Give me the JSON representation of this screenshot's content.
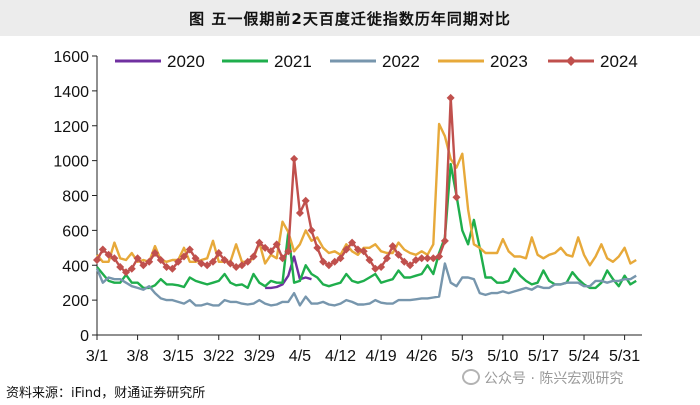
{
  "header": {
    "title": "图  五一假期前2天百度迁徙指数历年同期对比"
  },
  "footer": {
    "source": "资料来源：iFind，财通证券研究所"
  },
  "watermark": {
    "text": "公众号 · 陈兴宏观研究",
    "icon": "wechat-icon"
  },
  "chart_data": {
    "type": "line",
    "title": "五一假期前2天百度迁徙指数历年同期对比",
    "xlabel": "",
    "ylabel": "",
    "ylim": [
      0,
      1600
    ],
    "yticks": [
      0,
      200,
      400,
      600,
      800,
      1000,
      1200,
      1400,
      1600
    ],
    "xtick_labels": [
      "3/1",
      "3/8",
      "3/15",
      "3/22",
      "3/29",
      "4/5",
      "4/12",
      "4/19",
      "4/26",
      "5/3",
      "5/10",
      "5/17",
      "5/24",
      "5/31"
    ],
    "xtick_days": [
      0,
      7,
      14,
      21,
      28,
      35,
      42,
      49,
      56,
      63,
      70,
      77,
      84,
      91
    ],
    "xlim_days": [
      0,
      94
    ],
    "legend_position": "top",
    "grid": false,
    "series": [
      {
        "name": "2020",
        "color": "#7030a0",
        "marker": "none",
        "x": [
          29,
          30,
          31,
          32,
          33,
          34,
          35,
          36,
          37
        ],
        "y": [
          270,
          270,
          275,
          290,
          340,
          450,
          320,
          330,
          320
        ]
      },
      {
        "name": "2021",
        "color": "#1fae4c",
        "marker": "none",
        "x": [
          0,
          1,
          2,
          3,
          4,
          5,
          6,
          7,
          8,
          9,
          10,
          11,
          12,
          13,
          14,
          15,
          16,
          17,
          18,
          19,
          20,
          21,
          22,
          23,
          24,
          25,
          26,
          27,
          28,
          29,
          30,
          31,
          32,
          33,
          34,
          35,
          36,
          37,
          38,
          39,
          40,
          41,
          42,
          43,
          44,
          45,
          46,
          47,
          48,
          49,
          50,
          51,
          52,
          53,
          54,
          55,
          56,
          57,
          58,
          59,
          60,
          61,
          62,
          63,
          64,
          65,
          66,
          67,
          68,
          69,
          70,
          71,
          72,
          73,
          74,
          75,
          76,
          77,
          78,
          79,
          80,
          81,
          82,
          83,
          84,
          85,
          86,
          87,
          88,
          89,
          90,
          91,
          92,
          93
        ],
        "y": [
          390,
          350,
          310,
          300,
          300,
          345,
          300,
          300,
          270,
          270,
          285,
          320,
          290,
          290,
          285,
          275,
          330,
          310,
          300,
          290,
          300,
          310,
          350,
          300,
          285,
          290,
          270,
          350,
          300,
          280,
          310,
          300,
          300,
          590,
          300,
          310,
          400,
          350,
          330,
          290,
          280,
          290,
          300,
          350,
          310,
          300,
          310,
          330,
          350,
          300,
          310,
          320,
          370,
          330,
          330,
          340,
          350,
          400,
          350,
          470,
          560,
          980,
          800,
          600,
          520,
          660,
          500,
          330,
          330,
          300,
          300,
          310,
          380,
          340,
          310,
          290,
          300,
          370,
          310,
          290,
          290,
          300,
          360,
          320,
          290,
          270,
          270,
          300,
          370,
          320,
          280,
          340,
          290,
          310
        ]
      },
      {
        "name": "2022",
        "color": "#7796ad",
        "marker": "none",
        "x": [
          0,
          1,
          2,
          3,
          4,
          5,
          6,
          7,
          8,
          9,
          10,
          11,
          12,
          13,
          14,
          15,
          16,
          17,
          18,
          19,
          20,
          21,
          22,
          23,
          24,
          25,
          26,
          27,
          28,
          29,
          30,
          31,
          32,
          33,
          34,
          35,
          36,
          37,
          38,
          39,
          40,
          41,
          42,
          43,
          44,
          45,
          46,
          47,
          48,
          49,
          50,
          51,
          52,
          53,
          54,
          55,
          56,
          57,
          58,
          59,
          60,
          61,
          62,
          63,
          64,
          65,
          66,
          67,
          68,
          69,
          70,
          71,
          72,
          73,
          74,
          75,
          76,
          77,
          78,
          79,
          80,
          81,
          82,
          83,
          84,
          85,
          86,
          87,
          88,
          89,
          90,
          91,
          92,
          93
        ],
        "y": [
          380,
          300,
          330,
          320,
          320,
          300,
          280,
          270,
          260,
          280,
          240,
          210,
          200,
          200,
          190,
          180,
          200,
          170,
          170,
          180,
          170,
          170,
          200,
          190,
          190,
          180,
          175,
          180,
          200,
          180,
          170,
          175,
          190,
          190,
          240,
          170,
          220,
          180,
          180,
          190,
          175,
          170,
          180,
          200,
          190,
          175,
          175,
          180,
          200,
          185,
          180,
          180,
          200,
          200,
          200,
          205,
          210,
          210,
          215,
          220,
          410,
          300,
          280,
          330,
          330,
          320,
          240,
          230,
          240,
          240,
          250,
          240,
          250,
          260,
          270,
          260,
          280,
          270,
          270,
          290,
          290,
          300,
          300,
          300,
          280,
          280,
          310,
          310,
          300,
          310,
          310,
          320,
          320,
          340
        ]
      },
      {
        "name": "2023",
        "color": "#e7a93a",
        "marker": "none",
        "x": [
          0,
          1,
          2,
          3,
          4,
          5,
          6,
          7,
          8,
          9,
          10,
          11,
          12,
          13,
          14,
          15,
          16,
          17,
          18,
          19,
          20,
          21,
          22,
          23,
          24,
          25,
          26,
          27,
          28,
          29,
          30,
          31,
          32,
          33,
          34,
          35,
          36,
          37,
          38,
          39,
          40,
          41,
          42,
          43,
          44,
          45,
          46,
          47,
          48,
          49,
          50,
          51,
          52,
          53,
          54,
          55,
          56,
          57,
          58,
          59,
          60,
          61,
          62,
          63,
          64,
          65,
          66,
          67,
          68,
          69,
          70,
          71,
          72,
          73,
          74,
          75,
          76,
          77,
          78,
          79,
          80,
          81,
          82,
          83,
          84,
          85,
          86,
          87,
          88,
          89,
          90,
          91,
          92,
          93
        ],
        "y": [
          460,
          420,
          420,
          530,
          440,
          430,
          470,
          420,
          430,
          420,
          510,
          430,
          420,
          430,
          430,
          500,
          420,
          420,
          430,
          440,
          540,
          420,
          420,
          420,
          520,
          420,
          420,
          440,
          530,
          410,
          460,
          440,
          650,
          590,
          480,
          520,
          600,
          540,
          560,
          500,
          470,
          480,
          460,
          520,
          480,
          460,
          500,
          500,
          520,
          480,
          470,
          470,
          530,
          490,
          470,
          460,
          480,
          460,
          520,
          1210,
          1140,
          1010,
          960,
          1040,
          720,
          520,
          500,
          470,
          470,
          470,
          550,
          480,
          450,
          450,
          440,
          560,
          460,
          440,
          460,
          470,
          500,
          460,
          450,
          560,
          460,
          400,
          450,
          520,
          440,
          420,
          450,
          500,
          410,
          430
        ]
      },
      {
        "name": "2024",
        "color": "#c0504d",
        "marker": "diamond",
        "x": [
          0,
          1,
          2,
          3,
          4,
          5,
          6,
          7,
          8,
          9,
          10,
          11,
          12,
          13,
          14,
          15,
          16,
          17,
          18,
          19,
          20,
          21,
          22,
          23,
          24,
          25,
          26,
          27,
          28,
          29,
          30,
          31,
          32,
          33,
          34,
          35,
          36,
          37,
          38,
          39,
          40,
          41,
          42,
          43,
          44,
          45,
          46,
          47,
          48,
          49,
          50,
          51,
          52,
          53,
          54,
          55,
          56,
          57,
          58,
          59,
          60,
          61,
          62
        ],
        "y": [
          430,
          490,
          460,
          440,
          390,
          360,
          380,
          440,
          400,
          420,
          470,
          430,
          390,
          380,
          420,
          450,
          490,
          440,
          410,
          400,
          420,
          470,
          430,
          410,
          390,
          400,
          420,
          450,
          530,
          500,
          480,
          520,
          440,
          480,
          1010,
          700,
          770,
          600,
          500,
          420,
          400,
          420,
          440,
          490,
          530,
          490,
          480,
          430,
          380,
          390,
          440,
          510,
          460,
          420,
          400,
          430,
          440,
          440,
          440,
          450,
          540,
          1360,
          790
        ]
      }
    ]
  }
}
